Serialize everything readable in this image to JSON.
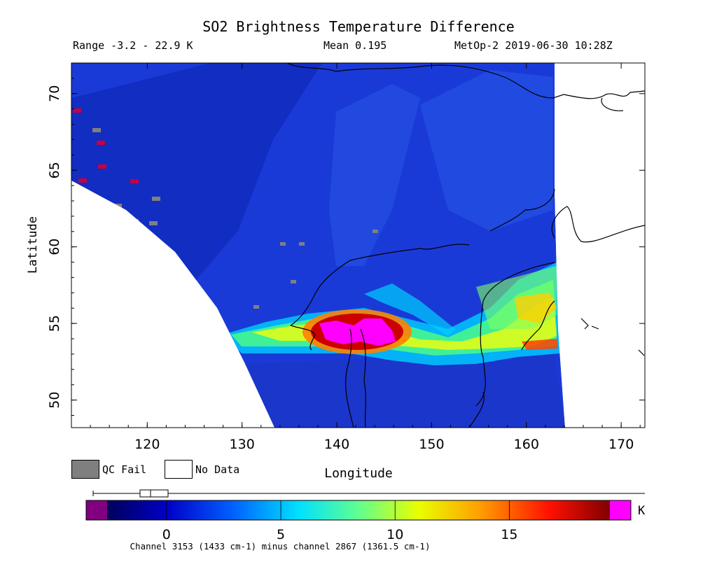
{
  "chart_data": {
    "type": "heatmap",
    "title": "SO2 Brightness Temperature Difference",
    "subtitle": {
      "range": "Range -3.2 - 22.9 K",
      "mean": "Mean 0.195",
      "satellite": "MetOp-2 2019-06-30 10:28Z"
    },
    "xlabel": "Longitude",
    "ylabel": "Latitude",
    "xlim": [
      112,
      172.5
    ],
    "ylim": [
      48.2,
      72
    ],
    "x_ticks": [
      120,
      130,
      140,
      150,
      160,
      170
    ],
    "y_ticks": [
      50,
      55,
      60,
      65,
      70
    ],
    "colorbar": {
      "ticks": [
        0,
        5,
        10,
        15
      ],
      "range": [
        -3.2,
        22.9
      ],
      "unit": "K",
      "min_color": "#800080",
      "max_color": "#ff00ff",
      "scale_colors": [
        "#00007f",
        "#0000ff",
        "#007fff",
        "#00ffff",
        "#7fff7f",
        "#ffff00",
        "#ff7f00",
        "#ff0000",
        "#7f0000"
      ]
    },
    "legend": [
      {
        "label": "QC Fail",
        "color": "#7f7f7f"
      },
      {
        "label": "No Data",
        "color": "#ffffff"
      }
    ],
    "footnote": "Channel 3153 (1433 cm-1) minus channel 2867 (1361.5 cm-1)",
    "plume": {
      "peak_lon": 142,
      "peak_lat": 54.3,
      "peak_value": 22.9,
      "description_values": "SO2 plume over Sea of Okhotsk extending from ~130E to ~164E near 53-56N"
    }
  }
}
